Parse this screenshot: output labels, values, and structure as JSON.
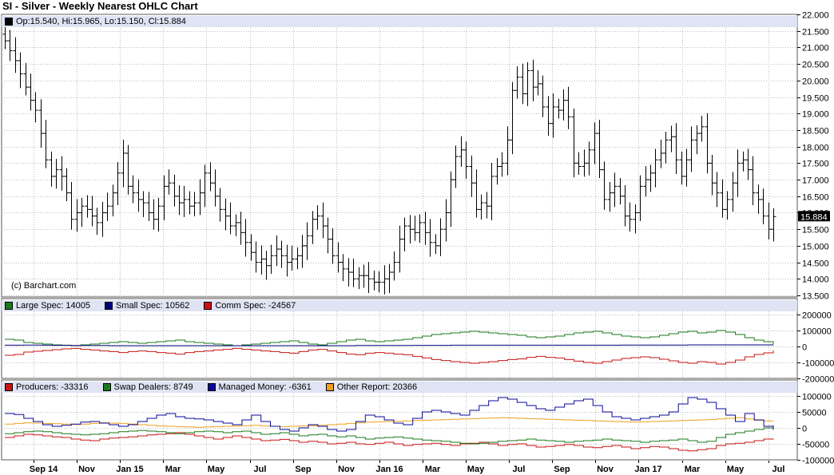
{
  "title": "SI - Silver - Weekly Nearest OHLC Chart",
  "ohlc_legend": "Op:15.540, Hi:15.965, Lo:15.150, Cl:15.884",
  "copyright": "(c) Barchart.com",
  "last_price_label": "15.884",
  "colors": {
    "large_spec": "#1a7a1a",
    "small_spec": "#00007a",
    "comm_spec": "#c81414",
    "producers": "#c81414",
    "swap_dealers": "#1a7a1a",
    "managed_money": "#0a0a9a",
    "other_report": "#f0a020",
    "legend_bg": "#dfe3f3"
  },
  "chart_data": [
    {
      "type": "line",
      "title": "SI - Silver - Weekly Nearest OHLC Chart",
      "ylim": [
        13.5,
        22.0
      ],
      "yticks": [
        "22.000",
        "21.500",
        "21.000",
        "20.500",
        "20.000",
        "19.500",
        "19.000",
        "18.500",
        "18.000",
        "17.500",
        "17.000",
        "16.500",
        "16.000",
        "15.500",
        "15.000",
        "14.500",
        "14.000",
        "13.500"
      ],
      "xticks": [
        "Sep 14",
        "Nov",
        "Jan 15",
        "Mar",
        "May",
        "Jul",
        "Sep",
        "Nov",
        "Jan 16",
        "Mar",
        "May",
        "Jul",
        "Sep",
        "Nov",
        "Jan 17",
        "Mar",
        "May",
        "Jul"
      ],
      "ohlc_last": {
        "open": 15.54,
        "high": 15.965,
        "low": 15.15,
        "close": 15.884
      },
      "series": [
        {
          "values": [
            21.2,
            20.9,
            20.6,
            20.2,
            19.8,
            19.4,
            19.1,
            18.4,
            17.6,
            17.1,
            17.3,
            17.1,
            16.6,
            15.8,
            16.0,
            16.2,
            16.1,
            15.9,
            15.7,
            16.0,
            16.2,
            16.6,
            17.2,
            17.8,
            16.8,
            16.6,
            16.4,
            16.3,
            16.0,
            15.8,
            16.2,
            16.8,
            16.9,
            16.5,
            16.3,
            16.4,
            16.2,
            16.3,
            16.6,
            17.2,
            16.9,
            16.5,
            16.1,
            15.9,
            15.6,
            15.7,
            15.4,
            15.1,
            14.8,
            14.5,
            14.6,
            14.4,
            14.7,
            14.9,
            14.7,
            14.5,
            14.6,
            14.7,
            15.0,
            15.3,
            15.8,
            15.9,
            15.6,
            15.2,
            14.7,
            14.5,
            14.3,
            14.2,
            14.0,
            14.1,
            14.1,
            14.0,
            13.9,
            13.9,
            14.0,
            14.2,
            14.5,
            15.2,
            15.6,
            15.5,
            15.4,
            15.7,
            15.4,
            15.1,
            15.0,
            15.5,
            16.0,
            17.0,
            17.7,
            17.9,
            17.4,
            16.9,
            16.1,
            16.3,
            16.2,
            17.1,
            17.4,
            17.5,
            18.2,
            19.7,
            20.1,
            19.6,
            20.3,
            19.8,
            19.9,
            19.2,
            18.7,
            19.2,
            19.1,
            19.4,
            18.9,
            17.5,
            17.4,
            17.5,
            17.9,
            18.4,
            17.3,
            16.4,
            16.6,
            16.8,
            16.5,
            15.9,
            15.8,
            16.0,
            16.8,
            17.0,
            17.2,
            17.6,
            17.8,
            18.2,
            18.3,
            17.6,
            17.1,
            17.6,
            18.2,
            18.4,
            18.6,
            17.5,
            16.9,
            16.6,
            16.1,
            16.4,
            16.9,
            17.5,
            17.6,
            17.3,
            16.6,
            16.4,
            15.9,
            15.5,
            15.884
          ]
        }
      ]
    },
    {
      "type": "line",
      "ylim": [
        -200000,
        200000
      ],
      "yticks": [
        "200000",
        "100000",
        "0",
        "-100000",
        "-200000"
      ],
      "series": [
        {
          "name": "Large Spec",
          "last": 14005,
          "values": [
            45000,
            40000,
            25000,
            20000,
            15000,
            10000,
            8000,
            5000,
            10000,
            15000,
            20000,
            25000,
            30000,
            25000,
            20000,
            25000,
            30000,
            35000,
            40000,
            30000,
            25000,
            20000,
            15000,
            10000,
            5000,
            10000,
            15000,
            20000,
            25000,
            30000,
            35000,
            25000,
            15000,
            10000,
            20000,
            30000,
            40000,
            45000,
            35000,
            30000,
            35000,
            40000,
            45000,
            55000,
            65000,
            75000,
            80000,
            85000,
            90000,
            95000,
            90000,
            85000,
            80000,
            75000,
            70000,
            60000,
            55000,
            60000,
            65000,
            75000,
            85000,
            90000,
            95000,
            85000,
            75000,
            65000,
            60000,
            55000,
            60000,
            70000,
            80000,
            90000,
            95000,
            85000,
            90000,
            100000,
            90000,
            75000,
            55000,
            40000,
            30000,
            14005
          ]
        },
        {
          "name": "Small Spec",
          "last": 10562,
          "values": [
            8000,
            8000,
            9000,
            9000,
            8000,
            7000,
            7000,
            6000,
            6000,
            6000,
            6000,
            5000,
            5000,
            5000,
            5000,
            5000,
            5000,
            5000,
            5000,
            5000,
            5000,
            5000,
            5000,
            5000,
            5000,
            5000,
            5000,
            5000,
            5000,
            5000,
            5000,
            5000,
            5000,
            5000,
            5000,
            5000,
            5000,
            6000,
            6000,
            6000,
            6000,
            6000,
            6000,
            7000,
            7000,
            7000,
            7000,
            8000,
            8000,
            8000,
            8000,
            8000,
            8000,
            8000,
            8000,
            8000,
            8000,
            8000,
            8000,
            8000,
            8000,
            8000,
            8000,
            8000,
            8000,
            9000,
            9000,
            9000,
            9000,
            9000,
            9000,
            9000,
            10000,
            10000,
            10000,
            10000,
            10000,
            10000,
            10000,
            10000,
            10000,
            10562
          ]
        },
        {
          "name": "Comm Spec",
          "last": -24567,
          "values": [
            -55000,
            -50000,
            -35000,
            -30000,
            -25000,
            -20000,
            -15000,
            -12000,
            -18000,
            -22000,
            -28000,
            -32000,
            -38000,
            -32000,
            -28000,
            -32000,
            -38000,
            -42000,
            -48000,
            -38000,
            -32000,
            -28000,
            -22000,
            -18000,
            -12000,
            -18000,
            -22000,
            -28000,
            -32000,
            -38000,
            -42000,
            -32000,
            -22000,
            -18000,
            -28000,
            -38000,
            -48000,
            -52000,
            -42000,
            -38000,
            -42000,
            -48000,
            -52000,
            -62000,
            -72000,
            -82000,
            -88000,
            -95000,
            -100000,
            -105000,
            -100000,
            -95000,
            -88000,
            -82000,
            -78000,
            -68000,
            -62000,
            -68000,
            -72000,
            -82000,
            -92000,
            -100000,
            -105000,
            -95000,
            -85000,
            -75000,
            -70000,
            -65000,
            -70000,
            -80000,
            -90000,
            -100000,
            -105000,
            -95000,
            -100000,
            -110000,
            -100000,
            -85000,
            -65000,
            -50000,
            -40000,
            -24567
          ]
        }
      ]
    },
    {
      "type": "line",
      "ylim": [
        -100000,
        100000
      ],
      "yticks": [
        "100000",
        "50000",
        "0",
        "-50000",
        "-100000"
      ],
      "series": [
        {
          "name": "Producers",
          "last": -33316,
          "values": [
            -30000,
            -25000,
            -20000,
            -22000,
            -25000,
            -28000,
            -30000,
            -35000,
            -38000,
            -40000,
            -35000,
            -32000,
            -30000,
            -28000,
            -25000,
            -22000,
            -20000,
            -18000,
            -15000,
            -20000,
            -25000,
            -30000,
            -35000,
            -30000,
            -25000,
            -30000,
            -35000,
            -40000,
            -38000,
            -36000,
            -40000,
            -45000,
            -42000,
            -45000,
            -50000,
            -48000,
            -45000,
            -50000,
            -52000,
            -48000,
            -45000,
            -50000,
            -55000,
            -52000,
            -50000,
            -48000,
            -52000,
            -55000,
            -50000,
            -48000,
            -45000,
            -50000,
            -55000,
            -52000,
            -50000,
            -55000,
            -60000,
            -58000,
            -55000,
            -52000,
            -55000,
            -60000,
            -62000,
            -58000,
            -55000,
            -60000,
            -65000,
            -62000,
            -58000,
            -60000,
            -65000,
            -70000,
            -72000,
            -68000,
            -65000,
            -55000,
            -50000,
            -48000,
            -45000,
            -40000,
            -35000,
            -33316
          ]
        },
        {
          "name": "Swap Dealers",
          "last": 8749,
          "values": [
            -18000,
            -15000,
            -12000,
            -10000,
            -12000,
            -15000,
            -18000,
            -20000,
            -22000,
            -20000,
            -18000,
            -15000,
            -12000,
            -10000,
            -8000,
            -10000,
            -12000,
            -15000,
            -18000,
            -15000,
            -12000,
            -10000,
            -12000,
            -15000,
            -12000,
            -10000,
            -15000,
            -20000,
            -18000,
            -15000,
            -20000,
            -25000,
            -22000,
            -20000,
            -25000,
            -28000,
            -25000,
            -30000,
            -35000,
            -32000,
            -30000,
            -28000,
            -32000,
            -35000,
            -38000,
            -40000,
            -42000,
            -45000,
            -48000,
            -50000,
            -48000,
            -45000,
            -42000,
            -40000,
            -38000,
            -35000,
            -38000,
            -40000,
            -42000,
            -45000,
            -42000,
            -40000,
            -38000,
            -35000,
            -38000,
            -40000,
            -42000,
            -45000,
            -42000,
            -40000,
            -38000,
            -35000,
            -40000,
            -45000,
            -42000,
            -30000,
            -20000,
            -15000,
            -10000,
            -5000,
            0,
            8749
          ]
        },
        {
          "name": "Managed Money",
          "last": -6361,
          "values": [
            45000,
            42000,
            30000,
            20000,
            10000,
            5000,
            8000,
            12000,
            18000,
            20000,
            15000,
            10000,
            5000,
            10000,
            20000,
            30000,
            40000,
            45000,
            35000,
            30000,
            28000,
            25000,
            20000,
            15000,
            10000,
            25000,
            40000,
            20000,
            5000,
            -5000,
            -10000,
            0,
            10000,
            5000,
            -5000,
            -10000,
            -5000,
            20000,
            40000,
            35000,
            25000,
            15000,
            10000,
            30000,
            50000,
            55000,
            50000,
            45000,
            40000,
            55000,
            70000,
            85000,
            95000,
            90000,
            80000,
            70000,
            60000,
            55000,
            65000,
            75000,
            85000,
            90000,
            70000,
            50000,
            35000,
            30000,
            25000,
            30000,
            35000,
            40000,
            50000,
            75000,
            95000,
            90000,
            80000,
            60000,
            40000,
            20000,
            45000,
            25000,
            5000,
            -6361
          ]
        },
        {
          "name": "Other Report",
          "last": 20366,
          "values": [
            12000,
            14000,
            16000,
            15000,
            14000,
            13000,
            12000,
            11000,
            12000,
            14000,
            16000,
            15000,
            14000,
            12000,
            10000,
            8000,
            6000,
            5000,
            4000,
            3000,
            2000,
            3000,
            4000,
            5000,
            6000,
            7000,
            8000,
            6000,
            5000,
            4000,
            5000,
            6000,
            7000,
            8000,
            10000,
            12000,
            14000,
            16000,
            18000,
            19000,
            20000,
            21000,
            22000,
            23000,
            24000,
            25000,
            26000,
            27000,
            28000,
            29000,
            30000,
            31000,
            32000,
            31000,
            30000,
            29000,
            28000,
            27000,
            26000,
            25000,
            24000,
            23000,
            22000,
            21000,
            20000,
            19000,
            18000,
            19000,
            20000,
            21000,
            22000,
            23000,
            24000,
            25000,
            26000,
            28000,
            30000,
            32000,
            28000,
            24000,
            22000,
            20366
          ]
        }
      ]
    }
  ]
}
